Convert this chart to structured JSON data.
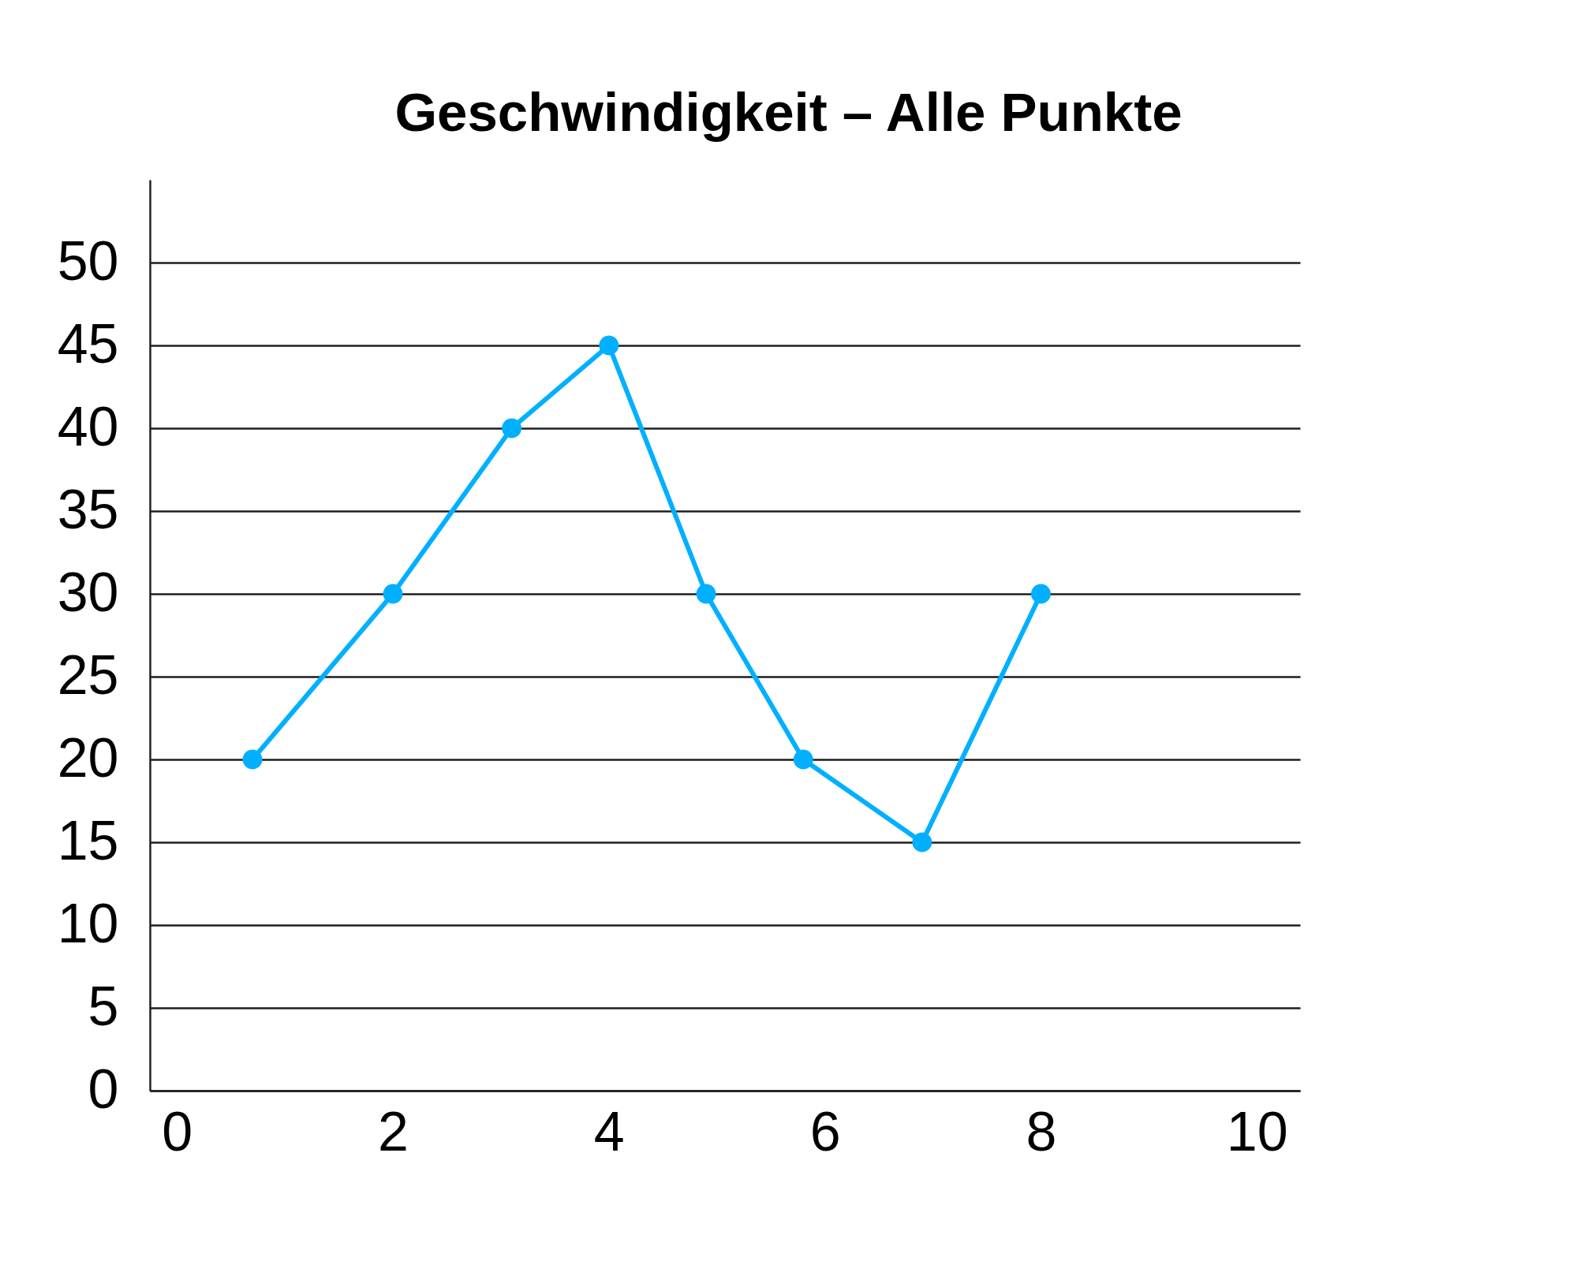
{
  "chart_data": {
    "type": "line",
    "title": "Geschwindigkeit – Alle Punkte",
    "x": [
      0.7,
      2,
      3.1,
      4,
      4.9,
      5.8,
      6.9,
      8
    ],
    "series": [
      {
        "color": "#00b0ff",
        "values": [
          20,
          30,
          40,
          45,
          30,
          20,
          15,
          30
        ]
      }
    ],
    "xlim": [
      -0.25,
      10.4
    ],
    "xticks": [
      0,
      2,
      4,
      6,
      8,
      10
    ],
    "ylim": [
      0,
      55
    ],
    "yticks": [
      0,
      5,
      10,
      15,
      20,
      25,
      30,
      35,
      40,
      45,
      50
    ],
    "grid": "y",
    "marker": "circle",
    "line_style": "solid"
  }
}
